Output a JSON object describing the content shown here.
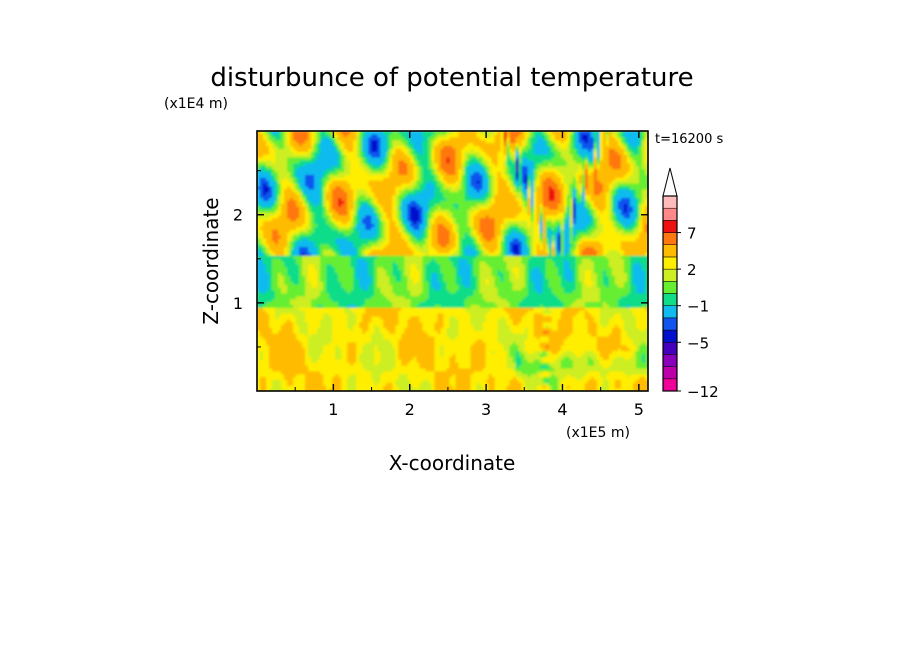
{
  "chart_data": {
    "type": "heatmap",
    "title": "disturbunce of potential temperature",
    "y_unit_label": "(x1E4 m)",
    "x_unit_label": "(x1E5 m)",
    "time_label": "t=16200 s",
    "xlabel": "X-coordinate",
    "ylabel": "Z-coordinate",
    "xlim": [
      0,
      5.12
    ],
    "ylim": [
      0,
      2.95
    ],
    "x_ticks": [
      "1",
      "2",
      "3",
      "4",
      "5"
    ],
    "y_ticks": [
      "1",
      "2"
    ],
    "x_tick_values": [
      1,
      2,
      3,
      4,
      5
    ],
    "y_tick_values": [
      1,
      2
    ],
    "colorbar": {
      "levels": [
        -12,
        -11,
        -9,
        -7,
        -5,
        -4,
        -3,
        -1,
        0,
        1,
        2,
        3,
        5,
        7,
        9,
        11
      ],
      "colors": [
        "#ee0099",
        "#bb00aa",
        "#8800bb",
        "#4400bb",
        "#0011cc",
        "#1155ee",
        "#11bbee",
        "#11dd88",
        "#66ee33",
        "#ccee22",
        "#ffee00",
        "#ffbb00",
        "#ff7711",
        "#ee1111",
        "#ff8888",
        "#ffbbbb"
      ],
      "tick_labels": [
        "7",
        "2",
        "−1",
        "−5",
        "−12"
      ],
      "tick_values": [
        7,
        2,
        -1,
        -5,
        -12
      ],
      "extend": "max"
    },
    "field_description": "2D wave field over x in [0, 5.12e5 m] and z in [0, 2.95e4 m]; warm (yellow-orange) boundary layer below z≈1e4 m, green neutral band near z≈1.0–1.5e4 m, alternating orange/blue wave cells aloft with strongest negative anomalies near x≈0.3–2.5e5 m, z≈2.0–2.8e4 m, and an X-shaped wave pattern centered near x≈3.9e5 m."
  }
}
